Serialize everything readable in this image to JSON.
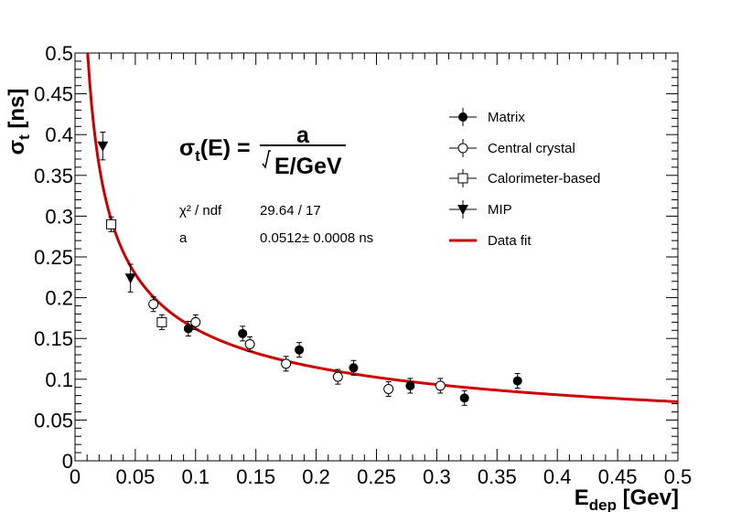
{
  "chart_data": {
    "type": "scatter",
    "title": "",
    "xlabel": {
      "main": "E",
      "sub": "dep",
      "unit": "[Gev]"
    },
    "ylabel": {
      "main": "σ",
      "sub": "t",
      "unit": "[ns]"
    },
    "xlim": [
      0,
      0.5
    ],
    "ylim": [
      0,
      0.5
    ],
    "xticks": [
      0,
      0.05,
      0.1,
      0.15,
      0.2,
      0.25,
      0.3,
      0.35,
      0.4,
      0.45,
      0.5
    ],
    "xtick_labels": [
      "0",
      "0.05",
      "0.1",
      "0.15",
      "0.2",
      "0.25",
      "0.3",
      "0.35",
      "0.4",
      "0.45",
      "0.5"
    ],
    "yticks": [
      0,
      0.05,
      0.1,
      0.15,
      0.2,
      0.25,
      0.3,
      0.35,
      0.4,
      0.45,
      0.5
    ],
    "ytick_labels": [
      "0",
      "0.05",
      "0.1",
      "0.15",
      "0.2",
      "0.25",
      "0.3",
      "0.35",
      "0.4",
      "0.45",
      "0.5"
    ],
    "grid": false,
    "legend_position": "top-right",
    "series": [
      {
        "name": "Matrix",
        "marker": "filled-circle",
        "points": [
          {
            "x": 0.094,
            "y": 0.162,
            "err": 0.009
          },
          {
            "x": 0.139,
            "y": 0.156,
            "err": 0.009
          },
          {
            "x": 0.186,
            "y": 0.136,
            "err": 0.009
          },
          {
            "x": 0.231,
            "y": 0.114,
            "err": 0.009
          },
          {
            "x": 0.278,
            "y": 0.092,
            "err": 0.009
          },
          {
            "x": 0.323,
            "y": 0.077,
            "err": 0.009
          },
          {
            "x": 0.367,
            "y": 0.098,
            "err": 0.009
          }
        ]
      },
      {
        "name": "Central crystal",
        "marker": "open-circle",
        "points": [
          {
            "x": 0.065,
            "y": 0.192,
            "err": 0.009
          },
          {
            "x": 0.1,
            "y": 0.17,
            "err": 0.009
          },
          {
            "x": 0.145,
            "y": 0.143,
            "err": 0.009
          },
          {
            "x": 0.175,
            "y": 0.119,
            "err": 0.009
          },
          {
            "x": 0.218,
            "y": 0.103,
            "err": 0.009
          },
          {
            "x": 0.26,
            "y": 0.088,
            "err": 0.009
          },
          {
            "x": 0.303,
            "y": 0.092,
            "err": 0.009
          }
        ]
      },
      {
        "name": "Calorimeter-based",
        "marker": "open-square",
        "points": [
          {
            "x": 0.03,
            "y": 0.29,
            "err": 0.009
          },
          {
            "x": 0.072,
            "y": 0.17,
            "err": 0.009
          }
        ]
      },
      {
        "name": "MIP",
        "marker": "filled-triangle-down",
        "points": [
          {
            "x": 0.023,
            "y": 0.386,
            "err": 0.017
          },
          {
            "x": 0.046,
            "y": 0.224,
            "err": 0.017
          }
        ]
      }
    ],
    "fit": {
      "name": "Data fit",
      "model": "a/sqrt(E)",
      "a": 0.0512,
      "x_range": [
        0.0105,
        0.5
      ],
      "color": "#cc0000"
    },
    "formula": {
      "lhs_main": "σ",
      "lhs_sub": "t",
      "lhs_rest": "(E) =",
      "numerator": "a",
      "denominator": "E/GeV"
    },
    "stats": {
      "chi2_label": "χ² / ndf",
      "chi2_value": "29.64 / 17",
      "a_label": "a",
      "a_value": "0.0512± 0.0008 ns"
    }
  }
}
